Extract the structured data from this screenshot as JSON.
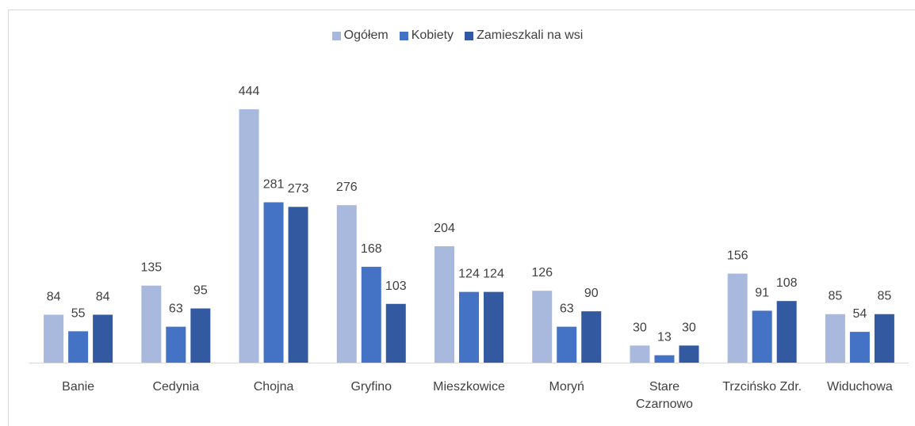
{
  "chart_data": {
    "type": "bar",
    "categories": [
      "Banie",
      "Cedynia",
      "Chojna",
      "Gryfino",
      "Mieszkowice",
      "Moryń",
      "Stare Czarnowo",
      "Trzcińsko Zdr.",
      "Widuchowa"
    ],
    "series": [
      {
        "name": "Ogółem",
        "color": "#a9b8dd",
        "values": [
          84,
          135,
          444,
          276,
          204,
          126,
          30,
          156,
          85
        ]
      },
      {
        "name": "Kobiety",
        "color": "#4472c4",
        "values": [
          55,
          63,
          281,
          168,
          124,
          63,
          13,
          91,
          54
        ]
      },
      {
        "name": "Zamieszkali na wsi",
        "color": "#335aa1",
        "values": [
          84,
          95,
          273,
          103,
          124,
          90,
          30,
          108,
          85
        ]
      }
    ]
  }
}
